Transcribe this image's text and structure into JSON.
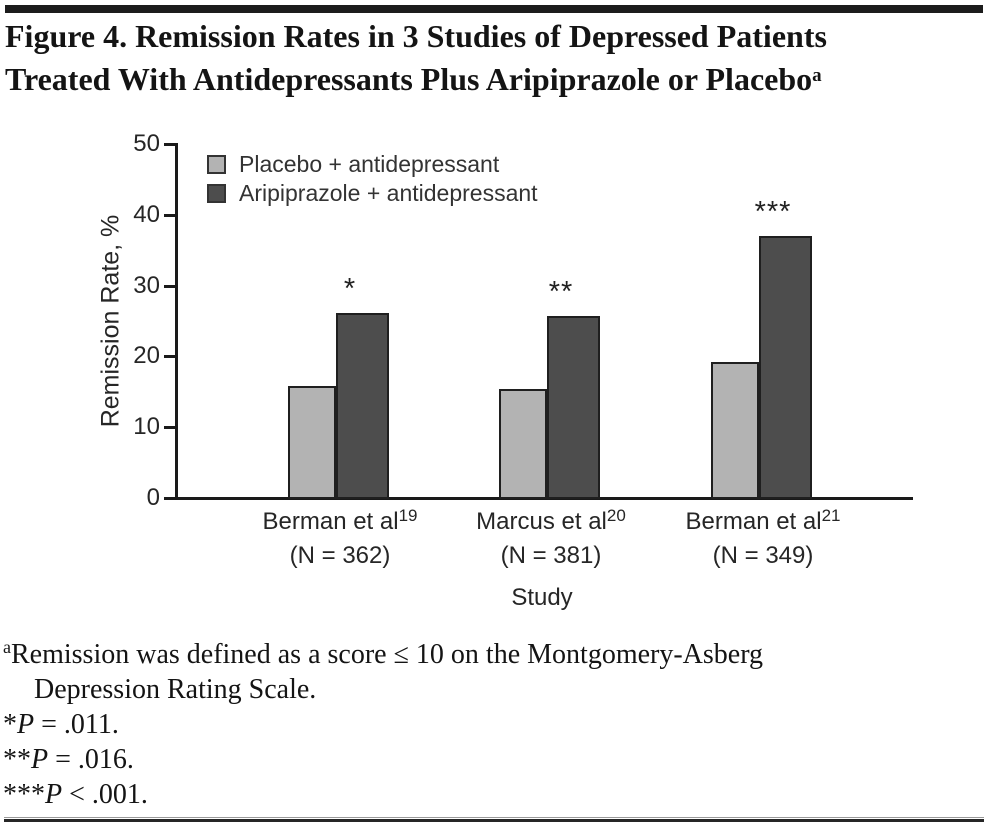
{
  "figure": {
    "title_line1": "Figure 4. Remission Rates in 3 Studies of Depressed Patients",
    "title_line2": "Treated With Antidepressants Plus Aripiprazole or Placebo",
    "title_superscript": "a"
  },
  "chart_data": {
    "type": "bar",
    "title": "Remission Rates in 3 Studies of Depressed Patients Treated With Antidepressants Plus Aripiprazole or Placebo",
    "ylabel": "Remission Rate, %",
    "xlabel": "Study",
    "ylim": [
      0,
      50
    ],
    "yticks": [
      0,
      10,
      20,
      30,
      40,
      50
    ],
    "grid": false,
    "legend_position": "top-left-inside",
    "categories": [
      {
        "label": "Berman et al",
        "ref": "19",
        "n_label": "(N = 362)"
      },
      {
        "label": "Marcus et al",
        "ref": "20",
        "n_label": "(N = 381)"
      },
      {
        "label": "Berman et al",
        "ref": "21",
        "n_label": "(N = 349)"
      }
    ],
    "series": [
      {
        "name": "Placebo + antidepressant",
        "color": "#b3b3b3",
        "values": [
          15.7,
          15.2,
          19.0
        ]
      },
      {
        "name": "Aripiprazole + antidepressant",
        "color": "#4d4d4d",
        "values": [
          26.0,
          25.5,
          36.8
        ]
      }
    ],
    "annotations": [
      "*",
      "**",
      "***"
    ],
    "bar_border_color": "#1f1f1f",
    "axis_color": "#1a1a1a"
  },
  "footnotes": {
    "definition_sup": "a",
    "definition_line1": "Remission was defined as a score ≤ 10 on the Montgomery-Asberg",
    "definition_line2": "Depression Rating Scale.",
    "pvalues": [
      {
        "stars": "*",
        "p": "P",
        "rest": " = .011."
      },
      {
        "stars": "**",
        "p": "P",
        "rest": " = .016."
      },
      {
        "stars": "***",
        "p": "P",
        "rest": " < .001."
      }
    ]
  }
}
